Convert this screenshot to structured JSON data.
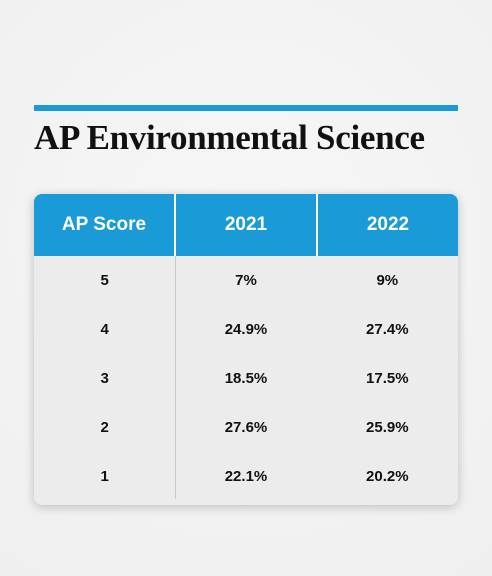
{
  "title": "AP Environmental Science",
  "colors": {
    "accent": "#1a9ad6",
    "header_text": "#ffffff",
    "body_background": "#ececec"
  },
  "chart_data": {
    "type": "table",
    "title": "AP Environmental Science",
    "columns": [
      "AP Score",
      "2021",
      "2022"
    ],
    "rows": [
      [
        "5",
        "7%",
        "9%"
      ],
      [
        "4",
        "24.9%",
        "27.4%"
      ],
      [
        "3",
        "18.5%",
        "17.5%"
      ],
      [
        "2",
        "27.6%",
        "25.9%"
      ],
      [
        "1",
        "22.1%",
        "20.2%"
      ]
    ],
    "series": [
      {
        "name": "2021",
        "values": [
          7,
          24.9,
          18.5,
          27.6,
          22.1
        ]
      },
      {
        "name": "2022",
        "values": [
          9,
          27.4,
          17.5,
          25.9,
          20.2
        ]
      }
    ],
    "categories": [
      "5",
      "4",
      "3",
      "2",
      "1"
    ]
  }
}
